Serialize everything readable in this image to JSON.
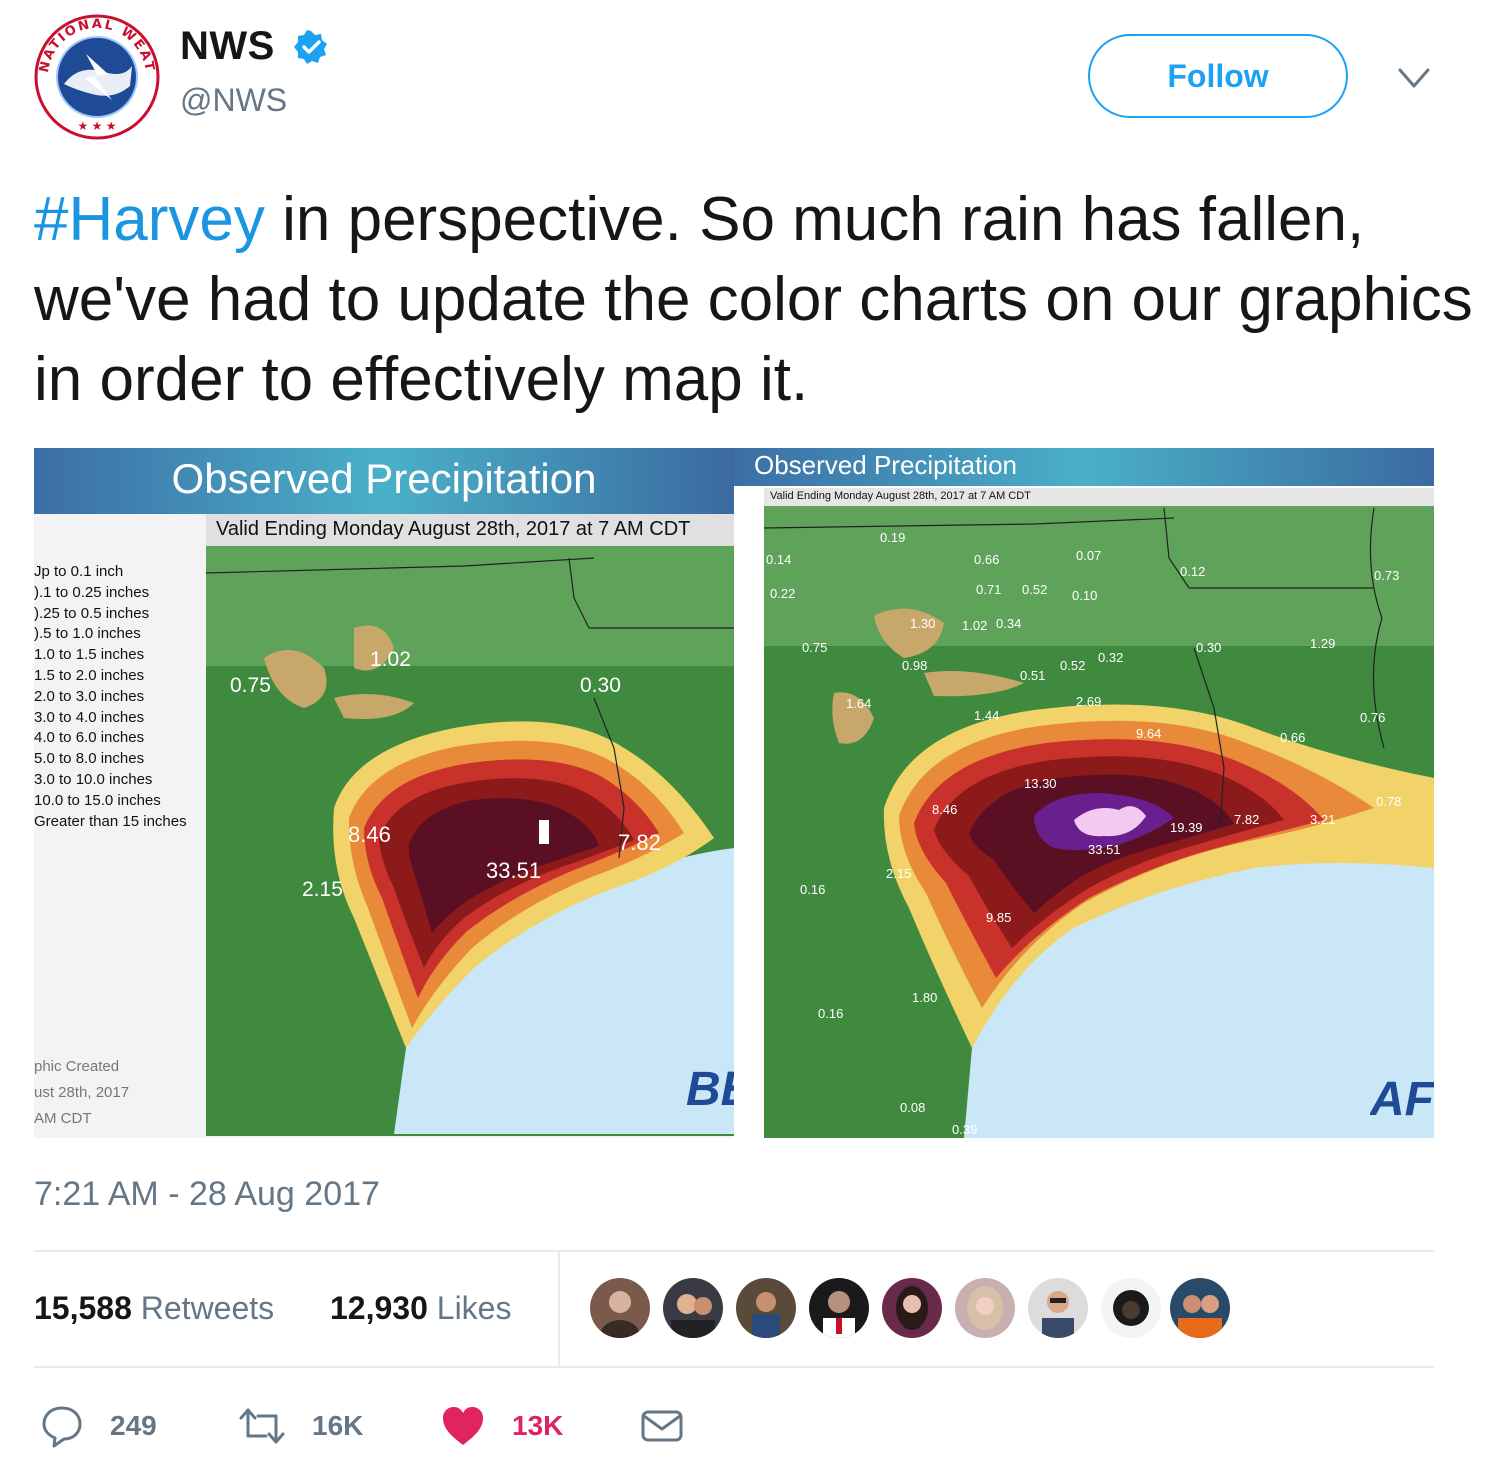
{
  "author": {
    "name": "NWS",
    "handle": "@NWS",
    "logo_text": "NATIONAL WEATHER SERVICE",
    "verified_icon": "verified-badge-icon"
  },
  "follow_label": "Follow",
  "tweet": {
    "hashtag": "#Harvey",
    "text": " in perspective.  So much rain has fallen, we've had to update the color charts on our graphics in order to effectively map it."
  },
  "images": {
    "before": {
      "title": "Observed Precipitation",
      "valid": "Valid Ending Monday August 28th, 2017 at 7 AM CDT",
      "legend": [
        "Jp to 0.1 inch",
        ").1 to 0.25 inches",
        ").25 to 0.5 inches",
        ").5 to 1.0 inches",
        "1.0 to 1.5 inches",
        "1.5 to 2.0 inches",
        "2.0 to 3.0 inches",
        "3.0 to 4.0 inches",
        "4.0 to 6.0 inches",
        "5.0 to 8.0 inches",
        "3.0 to 10.0 inches",
        "10.0 to 15.0 inches",
        "Greater than 15 inches"
      ],
      "created": [
        "phic Created",
        "ust 28th, 2017",
        "AM CDT"
      ],
      "corner_label": "BE",
      "values": [
        "1.02",
        "0.75",
        "0.30",
        "8.46",
        "7.82",
        "33.51",
        "2.15"
      ]
    },
    "after": {
      "title": "Observed Precipitation",
      "valid": "Valid Ending Monday August 28th, 2017 at 7 AM CDT",
      "corner_label": "AF",
      "values": [
        "0.19",
        "0.14",
        "0.66",
        "0.07",
        "0.12",
        "0.22",
        "0.71",
        "0.52",
        "0.10",
        "0.73",
        "1.30",
        "1.02",
        "0.34",
        "0.75",
        "0.30",
        "1.29",
        "0.98",
        "0.52",
        "0.32",
        "0.51",
        "1.64",
        "2.69",
        "1.44",
        "0.76",
        "9.64",
        "0.66",
        "13.30",
        "8.46",
        "0.78",
        "19.39",
        "7.82",
        "3.21",
        "33.51",
        "2.15",
        "0.16",
        "9.85",
        "1.80",
        "0.16",
        "0.08",
        "0.39"
      ]
    }
  },
  "timestamp": "7:21 AM - 28 Aug 2017",
  "stats": {
    "retweets_count": "15,588",
    "retweets_label": "Retweets",
    "likes_count": "12,930",
    "likes_label": "Likes"
  },
  "actions": {
    "replies": "249",
    "retweets": "16K",
    "likes": "13K"
  },
  "colors": {
    "link_blue": "#1b95e0",
    "follow_blue": "#1da1f2",
    "like_red": "#e0245e",
    "muted": "#657786"
  }
}
